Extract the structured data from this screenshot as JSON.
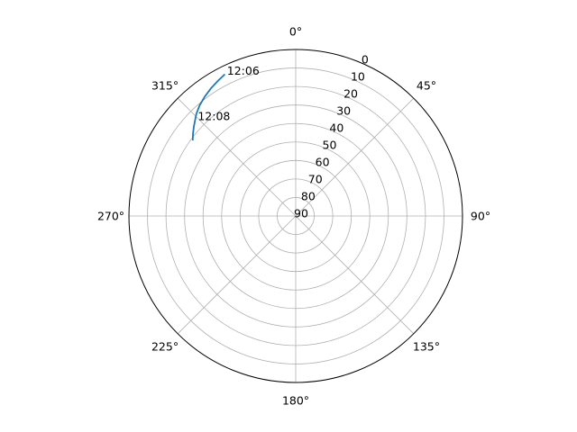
{
  "chart_data": {
    "type": "line",
    "projection": "polar",
    "theta_zero_location": "top",
    "theta_direction": "clockwise",
    "radial_axis": "zenith",
    "r_range": [
      0,
      90
    ],
    "r_ticks": [
      "0",
      "10",
      "20",
      "30",
      "40",
      "50",
      "60",
      "70",
      "80",
      "90"
    ],
    "theta_ticks": [
      {
        "deg": 0,
        "label": "0°"
      },
      {
        "deg": 45,
        "label": "45°"
      },
      {
        "deg": 90,
        "label": "90°"
      },
      {
        "deg": 135,
        "label": "135°"
      },
      {
        "deg": 180,
        "label": "180°"
      },
      {
        "deg": 225,
        "label": "225°"
      },
      {
        "deg": 270,
        "label": "270°"
      },
      {
        "deg": 315,
        "label": "315°"
      }
    ],
    "grid": true,
    "series": [
      {
        "color": "#1f77b4",
        "points": [
          {
            "az": 333.2,
            "el": 4.5
          },
          {
            "az": 330.0,
            "el": 5.8
          },
          {
            "az": 326.5,
            "el": 7.2
          },
          {
            "az": 322.8,
            "el": 8.9
          },
          {
            "az": 319.0,
            "el": 10.9
          },
          {
            "az": 315.9,
            "el": 13.0
          },
          {
            "az": 313.6,
            "el": 15.0
          },
          {
            "az": 311.1,
            "el": 17.0
          },
          {
            "az": 308.8,
            "el": 18.9
          },
          {
            "az": 306.6,
            "el": 20.8
          }
        ]
      }
    ],
    "annotations": [
      {
        "text": "12:06",
        "az": 333.2,
        "el": 4.5
      },
      {
        "text": "12:08",
        "az": 313.6,
        "el": 15.0
      }
    ]
  }
}
